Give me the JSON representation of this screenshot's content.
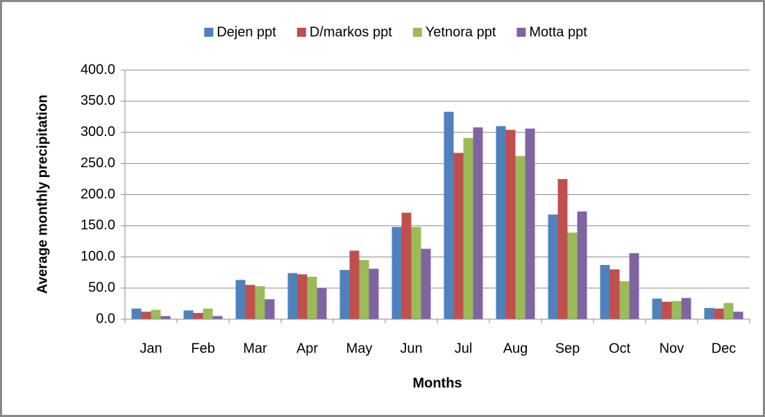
{
  "chart_data": {
    "type": "bar",
    "y_label": "Average monthly precipitation",
    "x_label": "Months",
    "categories": [
      "Jan",
      "Feb",
      "Mar",
      "Apr",
      "May",
      "Jun",
      "Jul",
      "Aug",
      "Sep",
      "Oct",
      "Nov",
      "Dec"
    ],
    "series": [
      {
        "name": "Dejen ppt",
        "color": "#4f81bd",
        "values": [
          17,
          14,
          63,
          74,
          79,
          148,
          333,
          310,
          168,
          87,
          33,
          18
        ]
      },
      {
        "name": "D/markos ppt",
        "color": "#c0504d",
        "values": [
          12,
          10,
          55,
          72,
          110,
          171,
          267,
          304,
          225,
          80,
          28,
          17
        ]
      },
      {
        "name": "Yetnora ppt",
        "color": "#9bbb59",
        "values": [
          15,
          17,
          53,
          68,
          95,
          148,
          291,
          262,
          139,
          61,
          29,
          26
        ]
      },
      {
        "name": "Motta ppt",
        "color": "#8064a2",
        "values": [
          5,
          5,
          32,
          50,
          81,
          113,
          308,
          306,
          173,
          106,
          34,
          12
        ]
      }
    ],
    "ylim": [
      0,
      400
    ],
    "yticks": [
      {
        "value": 0,
        "label": "0.0"
      },
      {
        "value": 50,
        "label": "50.0"
      },
      {
        "value": 100,
        "label": "100.0"
      },
      {
        "value": 150,
        "label": "150.0"
      },
      {
        "value": 200,
        "label": "200.0"
      },
      {
        "value": 250,
        "label": "250.0"
      },
      {
        "value": 300,
        "label": "300.0"
      },
      {
        "value": 350,
        "label": "350.0"
      },
      {
        "value": 400,
        "label": "400.0"
      }
    ],
    "grid": true,
    "legend": "top"
  }
}
